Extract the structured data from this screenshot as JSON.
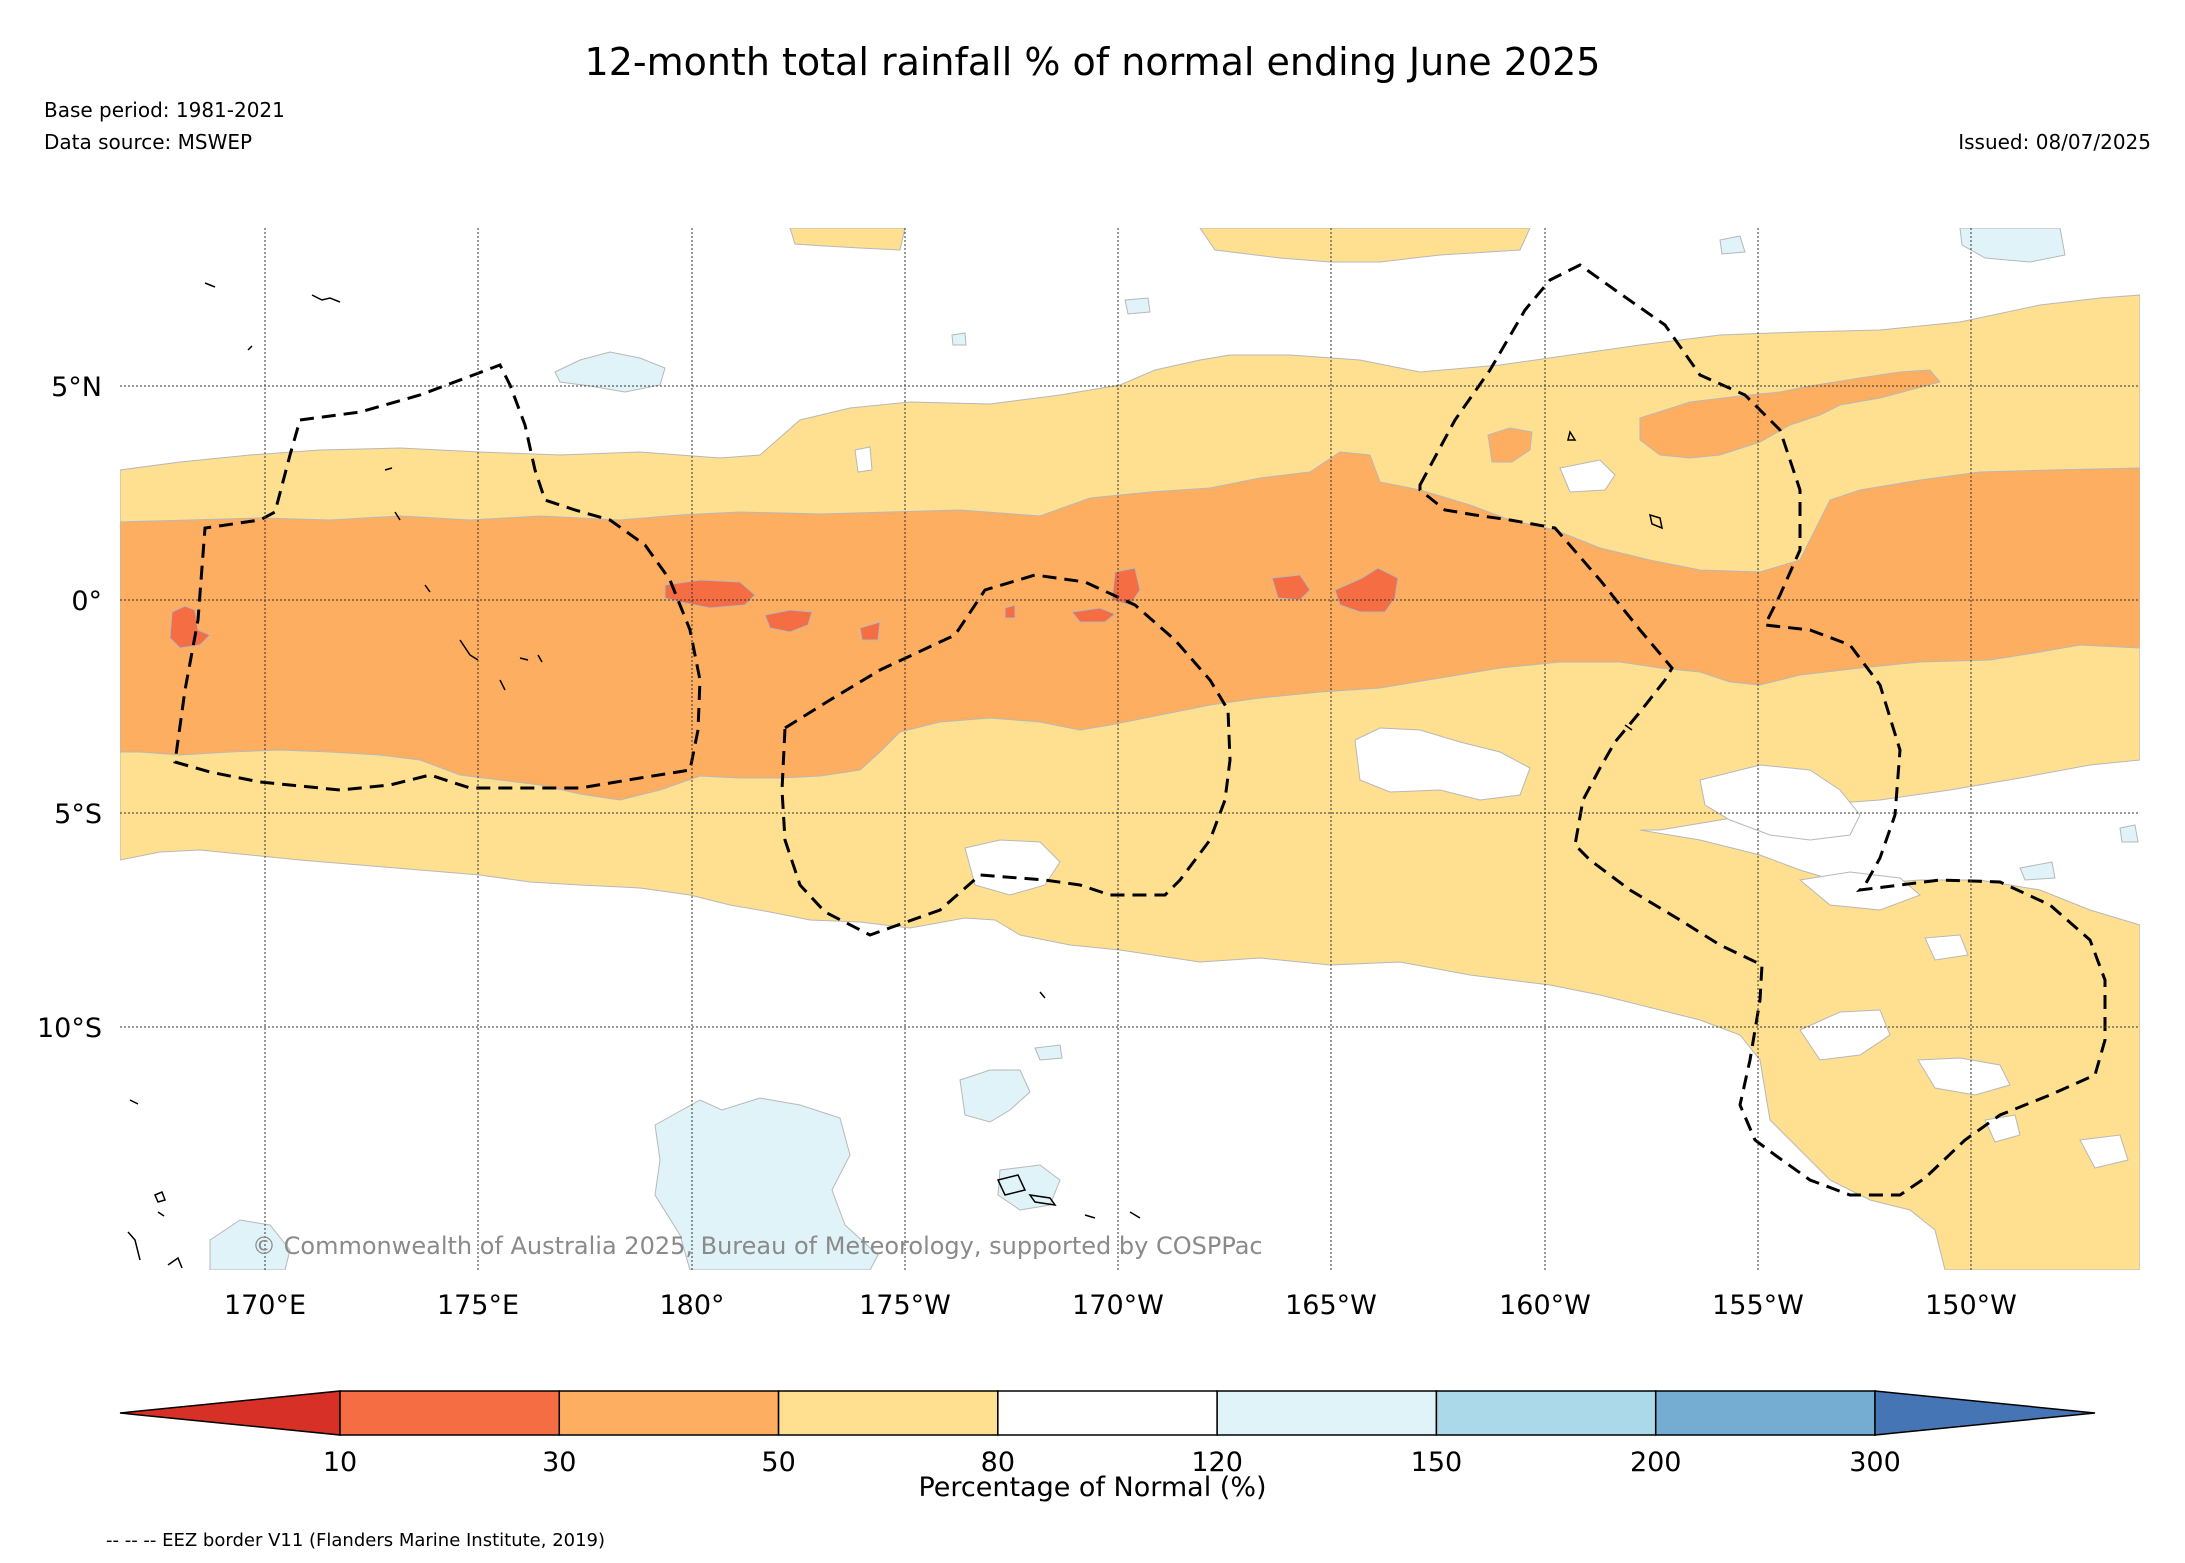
{
  "title": "12-month total rainfall % of normal ending June 2025",
  "base_period": "Base period: 1981-2021",
  "data_source": "Data source: MSWEP",
  "issued": "Issued: 08/07/2025",
  "credit": "© Commonwealth of Australia 2025, Bureau of Meteorology, supported by COSPPac",
  "legend_note": "-- -- -- EEZ border V11 (Flanders Marine Institute, 2019)",
  "map": {
    "lat_labels": [
      "5°N",
      "0°",
      "5°S",
      "10°S"
    ],
    "lon_labels": [
      "170°E",
      "175°E",
      "180°",
      "175°W",
      "170°W",
      "165°W",
      "160°W",
      "155°W",
      "150°W"
    ]
  },
  "colorbar": {
    "label": "Percentage of Normal (%)",
    "ticks": [
      "10",
      "30",
      "50",
      "80",
      "120",
      "150",
      "200",
      "300"
    ],
    "colors": [
      "#d73027",
      "#f46d43",
      "#fdae61",
      "#fee090",
      "#ffffff",
      "#e0f3f8",
      "#abd9e9",
      "#74add1",
      "#4575b4"
    ]
  },
  "colors": {
    "severe_dry": "#f46d43",
    "dry": "#fdae61",
    "below_normal": "#fee090",
    "above_normal": "#e0f3f8"
  }
}
